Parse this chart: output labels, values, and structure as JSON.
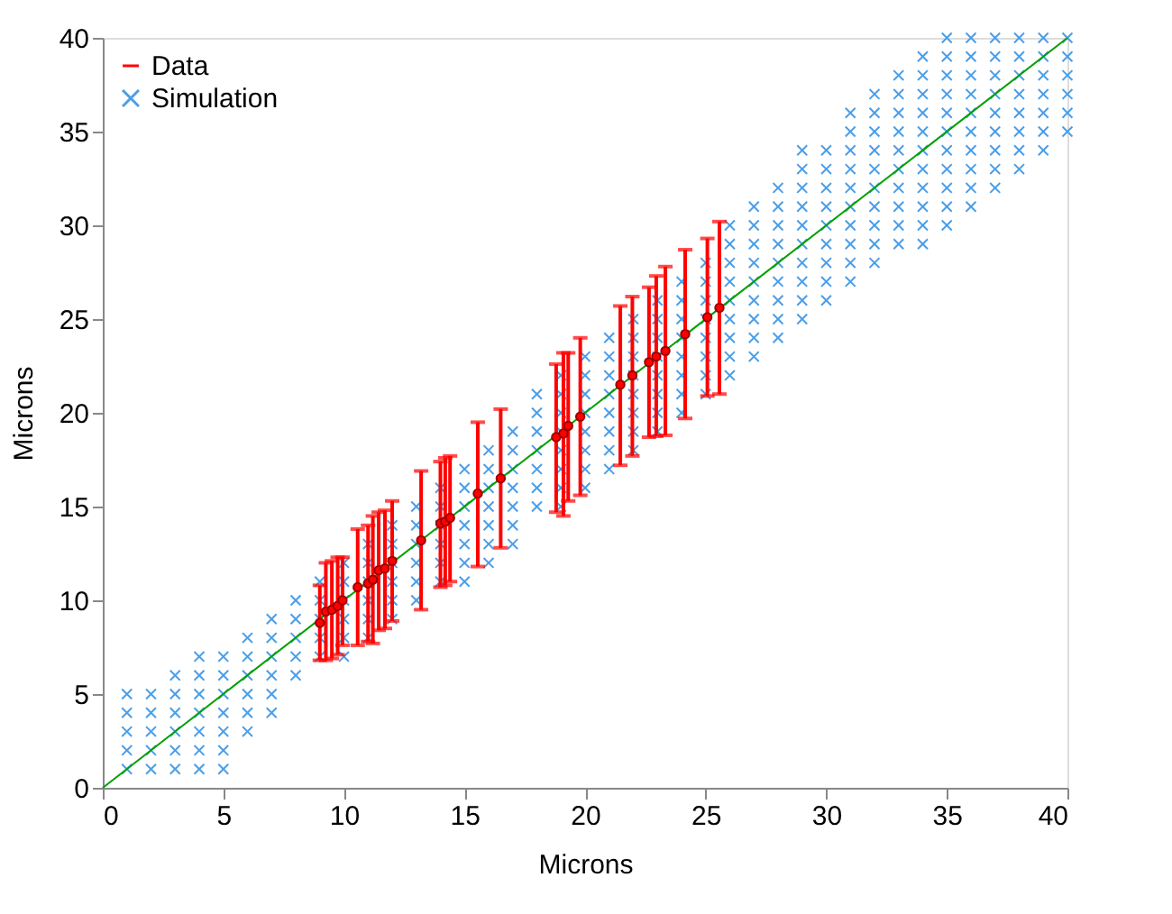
{
  "chart_data": {
    "type": "scatter",
    "xlabel": "Microns",
    "ylabel": "Microns",
    "xlim": [
      0,
      40
    ],
    "ylim": [
      0,
      40
    ],
    "xticks": [
      0,
      5,
      10,
      15,
      20,
      25,
      30,
      35,
      40
    ],
    "yticks": [
      0,
      5,
      10,
      15,
      20,
      25,
      30,
      35,
      40
    ],
    "grid": false,
    "legend": "top left",
    "series": [
      {
        "name": "Simulation",
        "marker": "cross",
        "color": "#4a9ee8",
        "x": [
          1,
          1,
          1,
          1,
          1,
          2,
          2,
          2,
          2,
          2,
          3,
          3,
          3,
          3,
          3,
          3,
          4,
          4,
          4,
          4,
          4,
          4,
          4,
          5,
          5,
          5,
          5,
          5,
          5,
          5,
          6,
          6,
          6,
          6,
          6,
          6,
          7,
          7,
          7,
          7,
          7,
          7,
          8,
          8,
          8,
          8,
          8,
          9,
          9,
          9,
          9,
          9,
          10,
          10,
          10,
          10,
          10,
          10,
          11,
          11,
          11,
          11,
          11,
          11,
          12,
          12,
          12,
          12,
          12,
          12,
          13,
          13,
          13,
          13,
          13,
          13,
          14,
          14,
          14,
          14,
          14,
          14,
          15,
          15,
          15,
          15,
          15,
          15,
          15,
          16,
          16,
          16,
          16,
          16,
          16,
          16,
          17,
          17,
          17,
          17,
          17,
          17,
          17,
          18,
          18,
          18,
          18,
          18,
          18,
          18,
          19,
          19,
          19,
          19,
          19,
          19,
          19,
          19,
          20,
          20,
          20,
          20,
          20,
          20,
          20,
          20,
          21,
          21,
          21,
          21,
          21,
          21,
          21,
          21,
          22,
          22,
          22,
          22,
          22,
          22,
          22,
          22,
          23,
          23,
          23,
          23,
          23,
          23,
          23,
          23,
          24,
          24,
          24,
          24,
          24,
          24,
          24,
          24,
          25,
          25,
          25,
          25,
          25,
          25,
          25,
          25,
          26,
          26,
          26,
          26,
          26,
          26,
          26,
          26,
          26,
          27,
          27,
          27,
          27,
          27,
          27,
          27,
          27,
          27,
          28,
          28,
          28,
          28,
          28,
          28,
          28,
          28,
          28,
          29,
          29,
          29,
          29,
          29,
          29,
          29,
          29,
          29,
          29,
          30,
          30,
          30,
          30,
          30,
          30,
          30,
          30,
          30,
          31,
          31,
          31,
          31,
          31,
          31,
          31,
          31,
          31,
          31,
          32,
          32,
          32,
          32,
          32,
          32,
          32,
          32,
          32,
          32,
          33,
          33,
          33,
          33,
          33,
          33,
          33,
          33,
          33,
          33,
          34,
          34,
          34,
          34,
          34,
          34,
          34,
          34,
          34,
          34,
          34,
          35,
          35,
          35,
          35,
          35,
          35,
          35,
          35,
          35,
          35,
          35,
          36,
          36,
          36,
          36,
          36,
          36,
          36,
          36,
          36,
          36,
          37,
          37,
          37,
          37,
          37,
          37,
          37,
          37,
          37,
          38,
          38,
          38,
          38,
          38,
          38,
          38,
          38,
          39,
          39,
          39,
          39,
          39,
          39,
          39,
          40,
          40,
          40,
          40,
          40,
          40
        ],
        "values": [
          1,
          2,
          3,
          4,
          5,
          1,
          2,
          3,
          4,
          5,
          1,
          2,
          3,
          4,
          5,
          6,
          1,
          2,
          3,
          4,
          5,
          6,
          7,
          1,
          2,
          3,
          4,
          5,
          6,
          7,
          3,
          4,
          5,
          6,
          7,
          8,
          4,
          5,
          6,
          7,
          8,
          9,
          6,
          7,
          8,
          9,
          10,
          7,
          8,
          9,
          10,
          11,
          7,
          8,
          9,
          10,
          11,
          12,
          8,
          9,
          10,
          11,
          12,
          13,
          9,
          10,
          11,
          12,
          13,
          14,
          10,
          11,
          12,
          13,
          14,
          15,
          11,
          12,
          13,
          14,
          15,
          16,
          11,
          12,
          13,
          14,
          15,
          16,
          17,
          12,
          13,
          14,
          15,
          16,
          17,
          18,
          13,
          14,
          15,
          16,
          17,
          18,
          19,
          15,
          16,
          17,
          18,
          19,
          20,
          21,
          15,
          16,
          17,
          18,
          19,
          20,
          21,
          22,
          16,
          17,
          18,
          19,
          20,
          21,
          22,
          23,
          17,
          18,
          19,
          20,
          21,
          22,
          23,
          24,
          18,
          19,
          20,
          21,
          22,
          23,
          24,
          25,
          19,
          20,
          21,
          22,
          23,
          24,
          25,
          26,
          20,
          21,
          22,
          23,
          24,
          25,
          26,
          27,
          21,
          22,
          23,
          24,
          25,
          26,
          27,
          28,
          22,
          23,
          24,
          25,
          26,
          27,
          28,
          29,
          30,
          23,
          24,
          25,
          26,
          27,
          28,
          29,
          30,
          31,
          24,
          25,
          26,
          27,
          28,
          29,
          30,
          31,
          32,
          25,
          26,
          27,
          28,
          29,
          30,
          31,
          32,
          33,
          34,
          26,
          27,
          28,
          29,
          30,
          31,
          32,
          33,
          34,
          27,
          28,
          29,
          30,
          31,
          32,
          33,
          34,
          35,
          36,
          28,
          29,
          30,
          31,
          32,
          33,
          34,
          35,
          36,
          37,
          29,
          30,
          31,
          32,
          33,
          34,
          35,
          36,
          37,
          38,
          29,
          30,
          31,
          32,
          33,
          34,
          35,
          36,
          37,
          38,
          39,
          30,
          31,
          32,
          33,
          34,
          35,
          36,
          37,
          38,
          39,
          40,
          31,
          32,
          33,
          34,
          35,
          36,
          37,
          38,
          39,
          40,
          32,
          33,
          34,
          35,
          36,
          37,
          38,
          39,
          40,
          33,
          34,
          35,
          36,
          37,
          38,
          39,
          40,
          34,
          35,
          36,
          37,
          38,
          39,
          40,
          35,
          36,
          37,
          38,
          39,
          40
        ]
      },
      {
        "type": "line",
        "color": "#00a000",
        "x": [
          0,
          40
        ],
        "values": [
          0,
          40
        ]
      },
      {
        "name": "Data",
        "marker": "circle",
        "color": "#ff0000",
        "x": [
          9.0,
          9.25,
          9.5,
          9.74,
          9.94,
          10.57,
          11.0,
          11.2,
          11.44,
          11.7,
          12.0,
          13.2,
          14.0,
          14.2,
          14.4,
          15.55,
          16.5,
          18.8,
          19.1,
          19.3,
          19.8,
          21.46,
          21.96,
          22.65,
          22.95,
          23.33,
          24.15,
          25.07,
          25.57
        ],
        "values": [
          8.8,
          9.4,
          9.5,
          9.7,
          10.0,
          10.7,
          10.9,
          11.1,
          11.6,
          11.7,
          12.1,
          13.2,
          14.1,
          14.2,
          14.4,
          15.7,
          16.5,
          18.7,
          18.9,
          19.3,
          19.8,
          21.5,
          22.0,
          22.7,
          23.0,
          23.3,
          24.2,
          25.1,
          25.6
        ],
        "errors": [
          [
            6.8,
            10.8
          ],
          [
            6.8,
            12.0
          ],
          [
            6.9,
            12.1
          ],
          [
            7.1,
            12.3
          ],
          [
            7.6,
            12.3
          ],
          [
            7.6,
            13.8
          ],
          [
            7.8,
            14.0
          ],
          [
            7.7,
            14.5
          ],
          [
            8.4,
            14.7
          ],
          [
            8.5,
            14.8
          ],
          [
            8.9,
            15.3
          ],
          [
            9.5,
            16.9
          ],
          [
            10.7,
            17.4
          ],
          [
            10.8,
            17.6
          ],
          [
            11.0,
            17.7
          ],
          [
            11.8,
            19.5
          ],
          [
            12.8,
            20.2
          ],
          [
            14.7,
            22.6
          ],
          [
            14.5,
            23.2
          ],
          [
            15.3,
            23.2
          ],
          [
            15.6,
            24.0
          ],
          [
            17.2,
            25.7
          ],
          [
            17.7,
            26.2
          ],
          [
            18.7,
            26.7
          ],
          [
            18.75,
            27.3
          ],
          [
            18.8,
            27.8
          ],
          [
            19.7,
            28.7
          ],
          [
            20.9,
            29.3
          ],
          [
            21.0,
            30.2
          ]
        ]
      }
    ]
  }
}
